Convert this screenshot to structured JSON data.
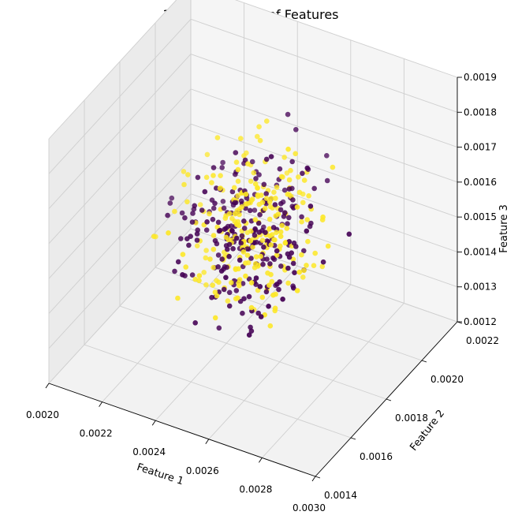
{
  "chart_data": {
    "type": "scatter",
    "title": "3D Visualization of Features",
    "xlabel": "Feature 1",
    "ylabel": "Feature 2",
    "zlabel": "Feature 3",
    "xlim": [
      0.002,
      0.003
    ],
    "ylim": [
      0.0014,
      0.0022
    ],
    "zlim": [
      0.0012,
      0.0019
    ],
    "x_ticks": [
      "0.0020",
      "0.0022",
      "0.0024",
      "0.0026",
      "0.0028",
      "0.0030"
    ],
    "y_ticks": [
      "0.0014",
      "0.0016",
      "0.0018",
      "0.0020",
      "0.0022"
    ],
    "z_ticks": [
      "0.0012",
      "0.0013",
      "0.0014",
      "0.0015",
      "0.0016",
      "0.0017",
      "0.0018",
      "0.0019"
    ],
    "grid": true,
    "projection": "3d",
    "class_colors": [
      "#440154",
      "#fde725"
    ],
    "points_per_class": 250,
    "distribution_center": [
      0.0025,
      0.0018,
      0.00155
    ],
    "distribution_spread": [
      0.0001,
      0.0001,
      0.0001
    ]
  }
}
